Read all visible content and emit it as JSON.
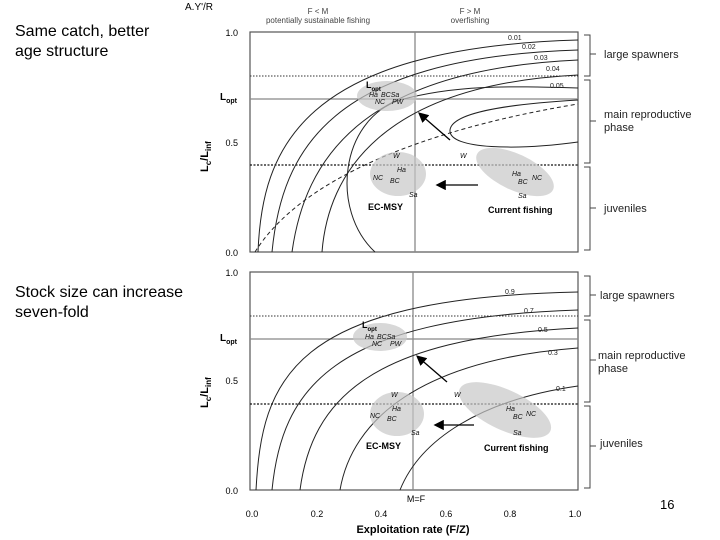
{
  "slide": {
    "caption_top": "Same catch, better\nage structure",
    "caption_bottom": "Stock size can increase\nseven-fold",
    "page_number": "16"
  },
  "figure": {
    "top_panel": {
      "y_axis_title": "A.Y'/R",
      "header_left_line1": "F < M",
      "header_left_line2": "potentially sustainable fishing",
      "header_right_line1": "F > M",
      "header_right_line2": "overfishing",
      "y_label_main": "L",
      "y_label_sub_c": "c",
      "y_label_slash": "/L",
      "y_label_sub_inf": "inf",
      "y_ticks": [
        "1.0",
        "0.5",
        "0.0"
      ],
      "lopt_axis_label": "L",
      "lopt_axis_sub": "opt",
      "lopt_box_label": "L",
      "lopt_box_sub": "opt",
      "contour_labels": [
        "0.01",
        "0.02",
        "0.03",
        "0.04",
        "0.05"
      ],
      "species_upper": [
        "Ha",
        "BCSa",
        "NC",
        "PW"
      ],
      "species_lower": [
        "W",
        "Ha",
        "NC",
        "BC",
        "Sa"
      ],
      "species_right": [
        "W",
        "Ha",
        "BC",
        "NC",
        "Sa"
      ],
      "ec_msy_label": "EC-MSY",
      "current_fishing_label": "Current fishing",
      "brackets": [
        "large spawners",
        "main reproductive",
        "phase",
        "juveniles"
      ]
    },
    "bottom_panel": {
      "y_label_main": "L",
      "y_label_sub_c": "c",
      "y_label_slash": "/L",
      "y_label_sub_inf": "inf",
      "y_ticks": [
        "1.0",
        "0.5",
        "0.0"
      ],
      "x_ticks": [
        "0.0",
        "0.2",
        "0.4",
        "0.6",
        "0.8",
        "1.0"
      ],
      "m_equals_f": "M=F",
      "x_axis_title": "Exploitation rate (F/Z)",
      "lopt_axis_label": "L",
      "lopt_axis_sub": "opt",
      "lopt_box_label": "L",
      "lopt_box_sub": "opt",
      "contour_labels": [
        "0.9",
        "0.7",
        "0.5",
        "0.3",
        "0.1"
      ],
      "species_upper": [
        "Ha",
        "BCSa",
        "NC",
        "PW"
      ],
      "species_lower": [
        "W",
        "Ha",
        "NC",
        "BC",
        "Sa"
      ],
      "species_right": [
        "W",
        "Ha",
        "BC",
        "NC",
        "Sa"
      ],
      "ec_msy_label": "EC-MSY",
      "current_fishing_label": "Current fishing",
      "brackets": [
        "large spawners",
        "main reproductive",
        "phase",
        "juveniles"
      ]
    }
  }
}
